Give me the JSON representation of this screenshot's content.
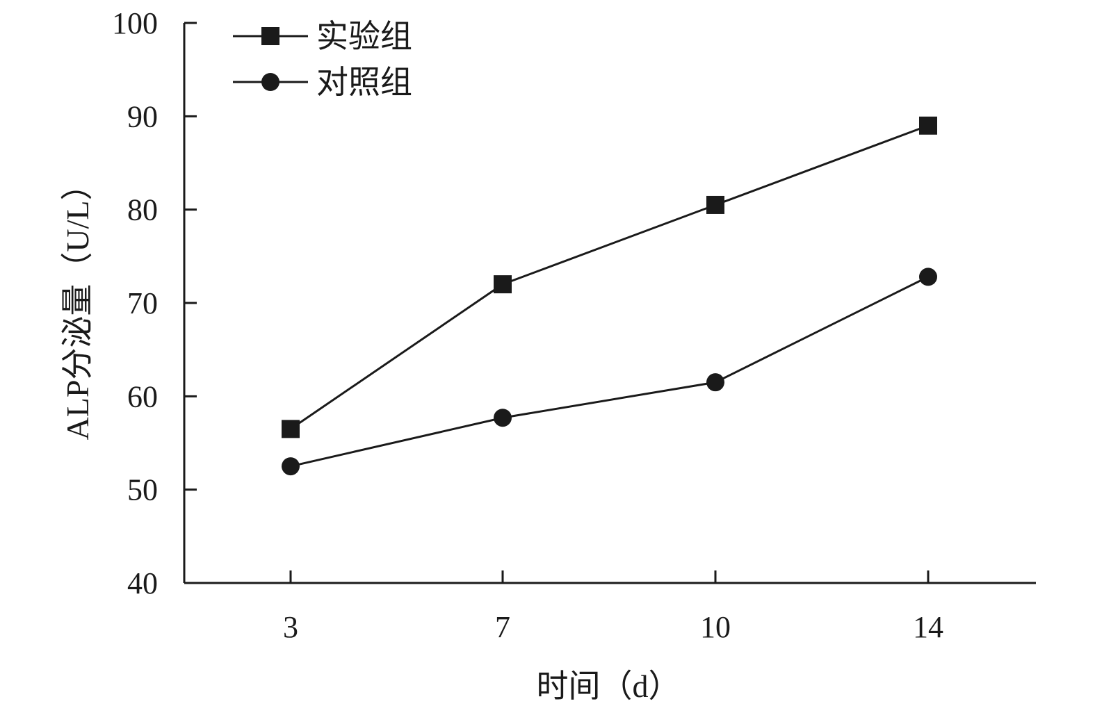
{
  "chart_data": {
    "type": "line",
    "title": "",
    "xlabel": "时间（d）",
    "ylabel": "ALP分泌量（U/L）",
    "categories": [
      "3",
      "7",
      "10",
      "14"
    ],
    "ylim": [
      40,
      100
    ],
    "yticks": [
      40,
      50,
      60,
      70,
      80,
      90,
      100
    ],
    "grid": false,
    "legend_position": "top-left",
    "series": [
      {
        "name": "实验组",
        "marker": "square",
        "values": [
          56.5,
          72.0,
          80.5,
          89.0
        ]
      },
      {
        "name": "对照组",
        "marker": "circle",
        "values": [
          52.5,
          57.7,
          61.5,
          72.8
        ]
      }
    ],
    "colors": {
      "line": "#1a1a1a",
      "marker": "#1a1a1a",
      "axis": "#1a1a1a"
    }
  }
}
